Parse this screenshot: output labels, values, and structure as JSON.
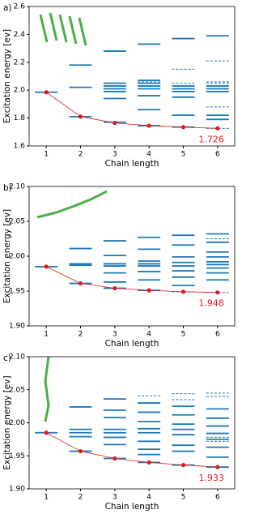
{
  "chart_data": [
    {
      "type": "levels",
      "label": "a)",
      "xlabel": "Chain length",
      "ylabel": "Excitation energy [ev]",
      "x": [
        1,
        2,
        3,
        4,
        5,
        6
      ],
      "xlim": [
        0.5,
        6.5
      ],
      "xticks": [
        1,
        2,
        3,
        4,
        5,
        6
      ],
      "ylim": [
        1.6,
        2.6
      ],
      "yticks": [
        1.6,
        1.8,
        {
          "value": 2.0,
          "label": "2.0"
        },
        2.2,
        2.4,
        2.6
      ],
      "points": [
        1.985,
        1.81,
        1.765,
        1.745,
        1.735,
        1.726
      ],
      "point_color": "#e31a1c",
      "level_color": "#1f77b4",
      "levels": [
        {
          "solid": [
            1.985
          ],
          "dashed": []
        },
        {
          "solid": [
            2.18,
            2.02,
            1.81
          ],
          "dashed": [
            1.81
          ]
        },
        {
          "solid": [
            2.28,
            2.05,
            2.03,
            2.01,
            1.99,
            1.94,
            1.77
          ],
          "dashed": []
        },
        {
          "solid": [
            2.33,
            2.07,
            2.05,
            2.03,
            2.01,
            1.96,
            1.86,
            1.745
          ],
          "dashed": [
            2.06
          ]
        },
        {
          "solid": [
            2.37,
            2.03,
            2.01,
            1.99,
            1.95,
            1.82,
            1.735
          ],
          "dashed": [
            2.15,
            2.05
          ]
        },
        {
          "solid": [
            2.39,
            2.03,
            2.01,
            1.99,
            1.82,
            1.79
          ],
          "dashed": [
            2.21,
            2.06,
            2.05,
            1.88,
            1.726
          ]
        }
      ],
      "annotation": 1.726
    },
    {
      "type": "levels",
      "label": "b)",
      "xlabel": "Chain length",
      "ylabel": "Excitation energy [ev]",
      "x": [
        1,
        2,
        3,
        4,
        5,
        6
      ],
      "xlim": [
        0.5,
        6.5
      ],
      "xticks": [
        1,
        2,
        3,
        4,
        5,
        6
      ],
      "ylim": [
        1.9,
        2.1
      ],
      "yticks": [
        {
          "value": 1.9,
          "label": "1.90"
        },
        1.95,
        {
          "value": 2.0,
          "label": "2.00"
        },
        2.05,
        {
          "value": 2.1,
          "label": "2.10"
        }
      ],
      "points": [
        1.985,
        1.961,
        1.954,
        1.951,
        1.949,
        1.948
      ],
      "point_color": "#e31a1c",
      "level_color": "#1f77b4",
      "levels": [
        {
          "solid": [
            1.985
          ],
          "dashed": []
        },
        {
          "solid": [
            2.011,
            1.989,
            1.987,
            1.961
          ],
          "dashed": []
        },
        {
          "solid": [
            2.022,
            2.001,
            1.989,
            1.986,
            1.976,
            1.963,
            1.954
          ],
          "dashed": []
        },
        {
          "solid": [
            2.027,
            2.01,
            1.993,
            1.989,
            1.986,
            1.978,
            1.966,
            1.951
          ],
          "dashed": []
        },
        {
          "solid": [
            2.03,
            2.016,
            1.999,
            1.991,
            1.986,
            1.979,
            1.97,
            1.958
          ],
          "dashed": [
            1.949
          ]
        },
        {
          "solid": [
            2.032,
            2.02,
            2.006,
            1.999,
            1.992,
            1.988,
            1.983,
            1.976,
            1.966
          ],
          "dashed": [
            2.025,
            1.948
          ]
        }
      ],
      "annotation": 1.948
    },
    {
      "type": "levels",
      "label": "c)",
      "xlabel": "Chain length",
      "ylabel": "Excitation energy [ev]",
      "x": [
        1,
        2,
        3,
        4,
        5,
        6
      ],
      "xlim": [
        0.5,
        6.5
      ],
      "xticks": [
        1,
        2,
        3,
        4,
        5,
        6
      ],
      "ylim": [
        1.9,
        2.1
      ],
      "yticks": [
        {
          "value": 1.9,
          "label": "1.90"
        },
        1.95,
        {
          "value": 2.0,
          "label": "2.00"
        },
        2.05,
        {
          "value": 2.1,
          "label": "2.10"
        }
      ],
      "points": [
        1.985,
        1.957,
        1.946,
        1.94,
        1.936,
        1.933
      ],
      "point_color": "#e31a1c",
      "level_color": "#1f77b4",
      "levels": [
        {
          "solid": [
            1.985
          ],
          "dashed": []
        },
        {
          "solid": [
            2.024,
            1.99,
            1.985,
            1.979,
            1.957
          ],
          "dashed": []
        },
        {
          "solid": [
            2.036,
            2.019,
            2.008,
            1.99,
            1.985,
            1.978,
            1.967,
            1.946
          ],
          "dashed": []
        },
        {
          "solid": [
            2.03,
            2.016,
            2.002,
            1.991,
            1.985,
            1.972,
            1.96,
            1.952,
            1.94
          ],
          "dashed": [
            2.041
          ]
        },
        {
          "solid": [
            2.025,
            2.012,
            1.998,
            1.99,
            1.982,
            1.966,
            1.957,
            1.936
          ],
          "dashed": [
            2.044,
            2.035
          ]
        },
        {
          "solid": [
            2.021,
            2.007,
            1.995,
            1.984,
            1.975,
            1.963,
            1.948,
            1.933
          ],
          "dashed": [
            2.045,
            2.04,
            1.978,
            1.972
          ]
        }
      ],
      "annotation": 1.933
    }
  ]
}
